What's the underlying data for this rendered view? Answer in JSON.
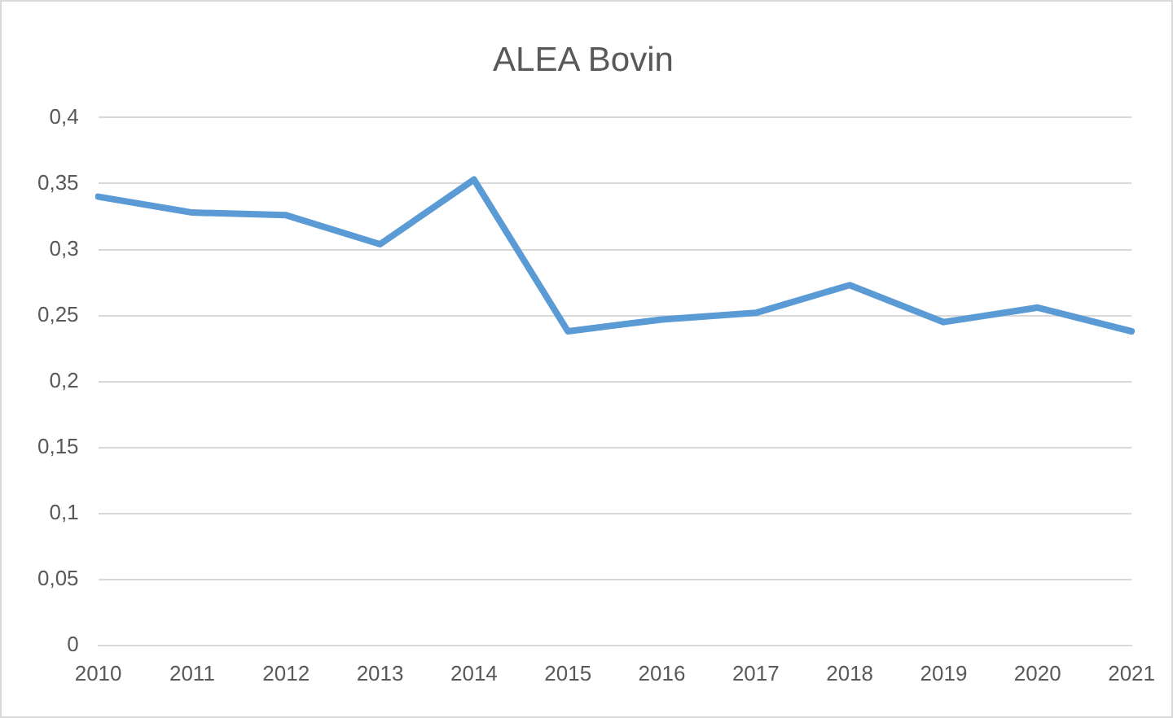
{
  "chart_data": {
    "type": "line",
    "title": "ALEA Bovin",
    "categories": [
      "2010",
      "2011",
      "2012",
      "2013",
      "2014",
      "2015",
      "2016",
      "2017",
      "2018",
      "2019",
      "2020",
      "2021"
    ],
    "series": [
      {
        "color": "#5b9bd5",
        "values": [
          0.34,
          0.328,
          0.326,
          0.304,
          0.353,
          0.238,
          0.247,
          0.252,
          0.273,
          0.245,
          0.256,
          0.238
        ]
      }
    ],
    "ylim": [
      0,
      0.4
    ],
    "yticks": [
      0,
      {
        "value": 0.05,
        "label": "0,05"
      },
      {
        "value": 0.1,
        "label": "0,1"
      },
      {
        "value": 0.15,
        "label": "0,15"
      },
      {
        "value": 0.2,
        "label": "0,2"
      },
      {
        "value": 0.25,
        "label": "0,25"
      },
      {
        "value": 0.3,
        "label": "0,3"
      },
      {
        "value": 0.35,
        "label": "0,35"
      },
      {
        "value": 0.4,
        "label": "0,4"
      }
    ],
    "grid": "y",
    "legend": false,
    "marker": "none",
    "line_style": "solid"
  }
}
